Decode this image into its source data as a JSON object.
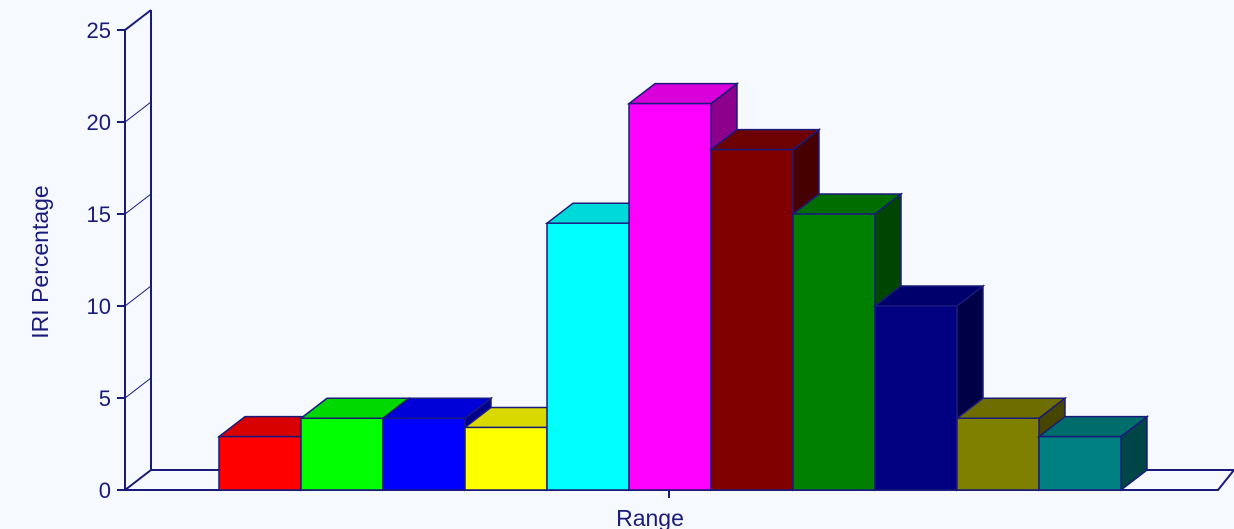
{
  "chart_data": {
    "type": "bar",
    "xlabel": "Range",
    "ylabel": "IRI Percentage",
    "ylim": [
      0,
      25
    ],
    "yticks": [
      0,
      5,
      10,
      15,
      20,
      25
    ],
    "grid": false,
    "three_d": true,
    "values": [
      2.9,
      3.9,
      3.9,
      3.4,
      14.5,
      21.0,
      18.5,
      15.0,
      10.0,
      3.9,
      2.9
    ],
    "colors": [
      "#ff0000",
      "#00ff00",
      "#0000ff",
      "#ffff00",
      "#00ffff",
      "#ff00ff",
      "#800000",
      "#008000",
      "#000080",
      "#808000",
      "#008080"
    ],
    "axis_color": "#1a1a7a",
    "background": "#f6f9ff"
  }
}
